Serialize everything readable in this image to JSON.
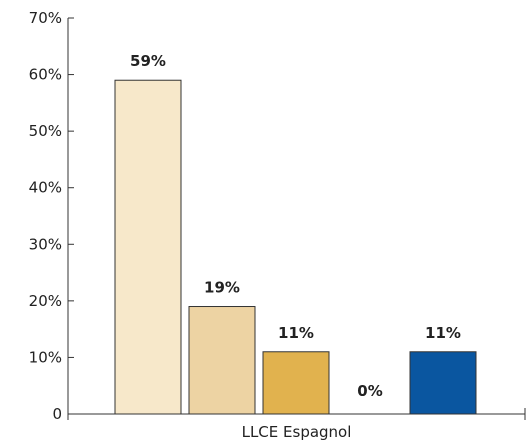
{
  "chart_data": {
    "type": "bar",
    "categories": [
      "LLCE Espagnol"
    ],
    "series": [
      {
        "values": [
          59
        ],
        "color": "#f7e8ca"
      },
      {
        "values": [
          19
        ],
        "color": "#edd3a3"
      },
      {
        "values": [
          11
        ],
        "color": "#e1b24e"
      },
      {
        "values": [
          0
        ],
        "color": "#c9962e"
      },
      {
        "values": [
          11
        ],
        "color": "#0a56a0"
      }
    ],
    "data_labels": [
      "59%",
      "19%",
      "11%",
      "0%",
      "11%"
    ],
    "y_ticks": [
      "0",
      "10%",
      "20%",
      "30%",
      "40%",
      "50%",
      "60%",
      "70%"
    ],
    "ylim": [
      0,
      70
    ],
    "grid": false,
    "legend": "none",
    "title": "",
    "xlabel": "",
    "ylabel": ""
  }
}
